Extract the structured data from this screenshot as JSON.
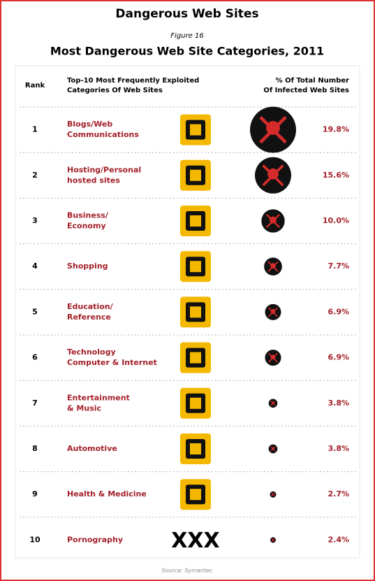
{
  "header": {
    "title": "Dangerous Web Sites",
    "figure": "Figure 16",
    "subtitle": "Most Dangerous Web Site Categories, 2011"
  },
  "table": {
    "columns": {
      "rank": "Rank",
      "category": [
        "Top-10 Most Frequently Exploited",
        "Categories Of Web Sites"
      ],
      "percent": [
        "% Of Total Number",
        "Of Infected Web Sites"
      ]
    },
    "rows": [
      {
        "rank": "1",
        "category": [
          "Blogs/Web",
          "Communications"
        ],
        "percent": "19.8%"
      },
      {
        "rank": "2",
        "category": [
          "Hosting/Personal",
          "hosted sites"
        ],
        "percent": "15.6%"
      },
      {
        "rank": "3",
        "category": [
          "Business/",
          "Economy"
        ],
        "percent": "10.0%"
      },
      {
        "rank": "4",
        "category": [
          "Shopping"
        ],
        "percent": "7.7%"
      },
      {
        "rank": "5",
        "category": [
          "Education/",
          "Reference"
        ],
        "percent": "6.9%"
      },
      {
        "rank": "6",
        "category": [
          "Technology",
          "Computer & Internet"
        ],
        "percent": "6.9%"
      },
      {
        "rank": "7",
        "category": [
          "Entertainment",
          "& Music"
        ],
        "percent": "3.8%"
      },
      {
        "rank": "8",
        "category": [
          "Automotive"
        ],
        "percent": "3.8%"
      },
      {
        "rank": "9",
        "category": [
          "Health & Medicine"
        ],
        "percent": "2.7%"
      },
      {
        "rank": "10",
        "category": [
          "Pornography"
        ],
        "percent": "2.4%",
        "icon_text": "XXX"
      }
    ]
  },
  "footer": {
    "source": "Source: Symantec"
  }
}
